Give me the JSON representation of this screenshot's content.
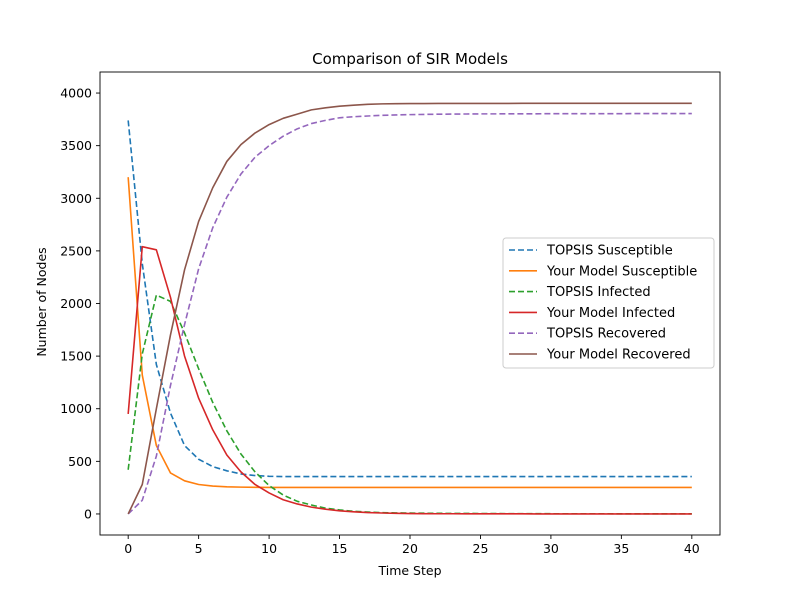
{
  "chart_data": {
    "type": "line",
    "title": "Comparison of SIR Models",
    "xlabel": "Time Step",
    "ylabel": "Number of Nodes",
    "xlim": [
      -2,
      42
    ],
    "ylim": [
      -200,
      4200
    ],
    "xticks": [
      0,
      5,
      10,
      15,
      20,
      25,
      30,
      35,
      40
    ],
    "yticks": [
      0,
      500,
      1000,
      1500,
      2000,
      2500,
      3000,
      3500,
      4000
    ],
    "grid": false,
    "legend_position": "center-right",
    "x": [
      0,
      1,
      2,
      3,
      4,
      5,
      6,
      7,
      8,
      9,
      10,
      11,
      12,
      13,
      14,
      15,
      16,
      17,
      18,
      19,
      20,
      21,
      22,
      23,
      24,
      25,
      26,
      27,
      28,
      29,
      30,
      31,
      32,
      33,
      34,
      35,
      36,
      37,
      38,
      39,
      40
    ],
    "series": [
      {
        "name": "TOPSIS Susceptible",
        "color": "#1f77b4",
        "style": "dashed",
        "values": [
          3740,
          2380,
          1420,
          960,
          650,
          520,
          450,
          410,
          380,
          365,
          358,
          355,
          355,
          355,
          355,
          355,
          355,
          355,
          355,
          355,
          355,
          355,
          355,
          355,
          355,
          355,
          355,
          355,
          355,
          355,
          355,
          355,
          355,
          355,
          355,
          355,
          355,
          355,
          355,
          355,
          355
        ]
      },
      {
        "name": "Your Model Susceptible",
        "color": "#ff7f0e",
        "style": "solid",
        "values": [
          3200,
          1320,
          650,
          390,
          315,
          280,
          265,
          258,
          255,
          253,
          252,
          252,
          252,
          252,
          252,
          252,
          252,
          252,
          252,
          252,
          252,
          252,
          252,
          252,
          252,
          252,
          252,
          252,
          252,
          252,
          252,
          252,
          252,
          252,
          252,
          252,
          252,
          252,
          252,
          252,
          252
        ]
      },
      {
        "name": "TOPSIS Infected",
        "color": "#2ca02c",
        "style": "dashed",
        "values": [
          420,
          1520,
          2080,
          2020,
          1720,
          1380,
          1060,
          790,
          570,
          400,
          270,
          180,
          120,
          85,
          55,
          38,
          25,
          18,
          12,
          10,
          8,
          7,
          6,
          5,
          5,
          4,
          4,
          3,
          3,
          3,
          2,
          2,
          2,
          2,
          2,
          1,
          1,
          1,
          1,
          1,
          1
        ]
      },
      {
        "name": "Your Model Infected",
        "color": "#d62728",
        "style": "solid",
        "values": [
          950,
          2540,
          2510,
          2060,
          1500,
          1100,
          800,
          560,
          400,
          280,
          200,
          135,
          95,
          65,
          45,
          30,
          20,
          13,
          9,
          6,
          4,
          3,
          2,
          2,
          1,
          1,
          1,
          1,
          1,
          0,
          0,
          0,
          0,
          0,
          0,
          0,
          0,
          0,
          0,
          0,
          0
        ]
      },
      {
        "name": "TOPSIS Recovered",
        "color": "#9467bd",
        "style": "dashed",
        "values": [
          0,
          130,
          550,
          1220,
          1800,
          2330,
          2720,
          3010,
          3230,
          3390,
          3500,
          3590,
          3660,
          3710,
          3740,
          3765,
          3775,
          3782,
          3788,
          3792,
          3795,
          3797,
          3799,
          3800,
          3801,
          3802,
          3802,
          3803,
          3803,
          3803,
          3804,
          3804,
          3804,
          3804,
          3804,
          3804,
          3805,
          3805,
          3805,
          3805,
          3805
        ]
      },
      {
        "name": "Your Model Recovered",
        "color": "#8c564b",
        "style": "solid",
        "values": [
          0,
          280,
          1000,
          1700,
          2320,
          2780,
          3100,
          3350,
          3510,
          3620,
          3700,
          3760,
          3800,
          3840,
          3860,
          3875,
          3885,
          3893,
          3897,
          3899,
          3900,
          3900,
          3901,
          3901,
          3901,
          3901,
          3901,
          3901,
          3902,
          3902,
          3902,
          3902,
          3902,
          3902,
          3902,
          3902,
          3902,
          3902,
          3902,
          3902,
          3902
        ]
      }
    ]
  }
}
